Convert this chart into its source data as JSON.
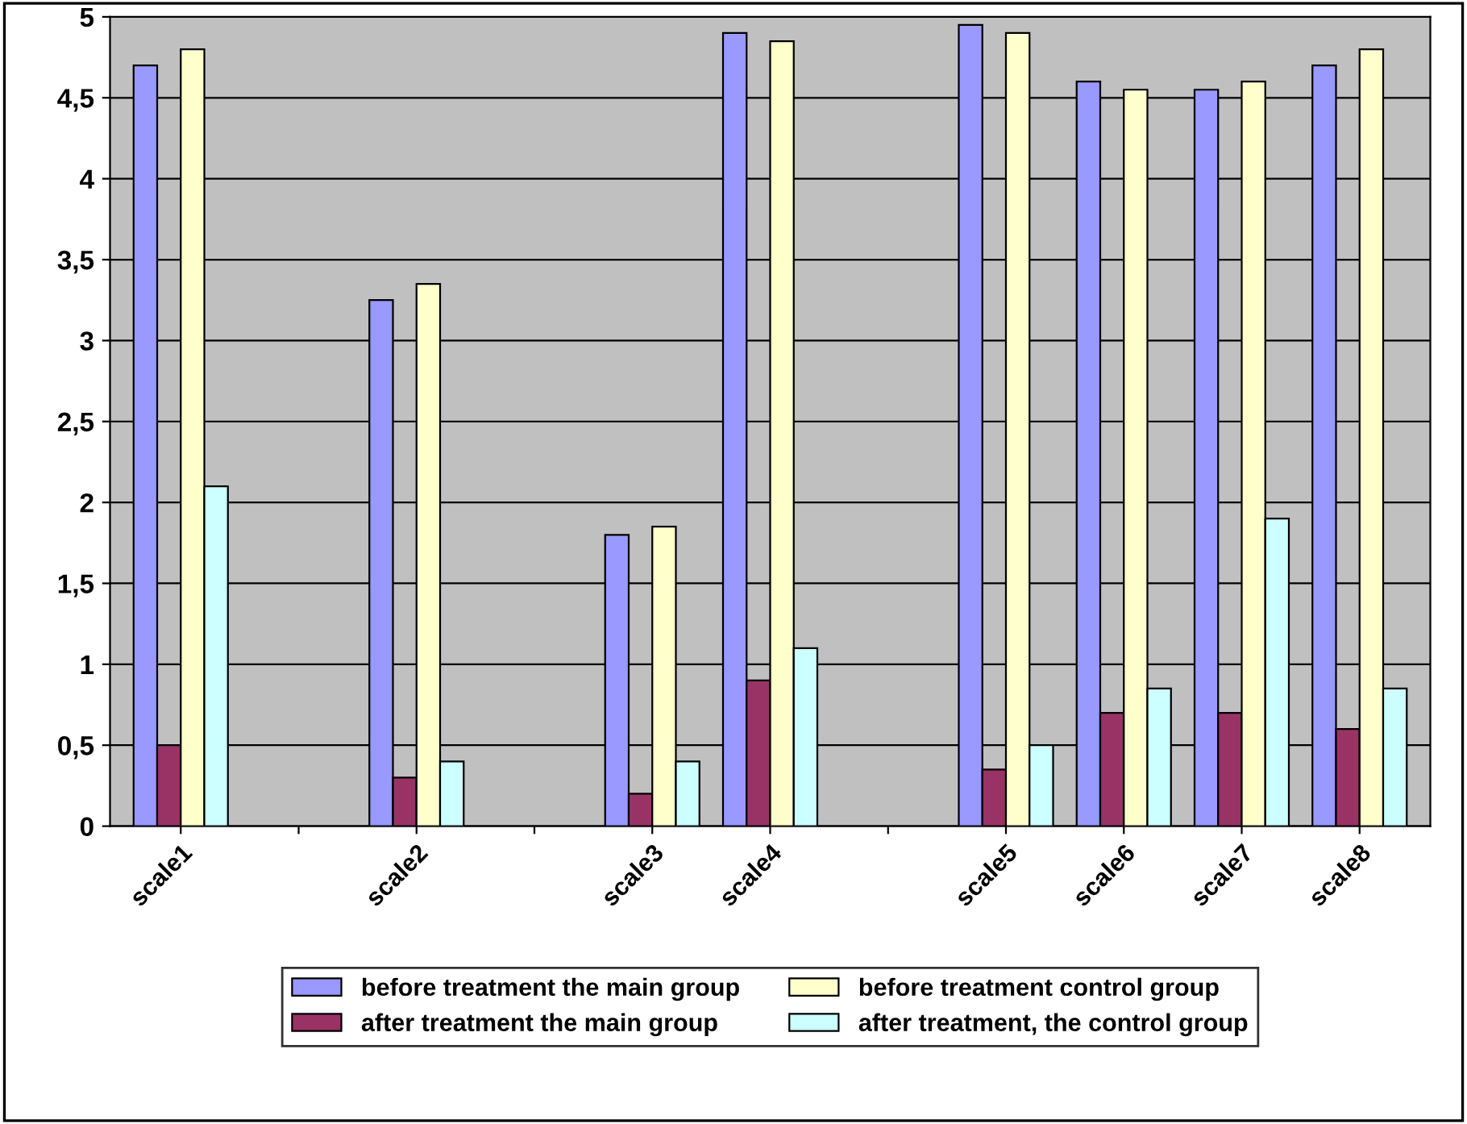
{
  "chart_data": {
    "type": "bar",
    "categories": [
      "scale1",
      null,
      "scale2",
      null,
      "scale3",
      "scale4",
      null,
      "scale5",
      "scale6",
      "scale7",
      "scale8"
    ],
    "series": [
      {
        "name": "before treatment the main group",
        "color": "#9999ff",
        "values": [
          4.7,
          null,
          3.25,
          null,
          1.8,
          4.9,
          null,
          4.95,
          4.6,
          4.55,
          4.7
        ]
      },
      {
        "name": "after treatment the main group",
        "color": "#993366",
        "values": [
          0.5,
          null,
          0.3,
          null,
          0.2,
          0.9,
          null,
          0.35,
          0.7,
          0.7,
          0.6
        ]
      },
      {
        "name": "before treatment control group",
        "color": "#ffffcc",
        "values": [
          4.8,
          null,
          3.35,
          null,
          1.85,
          4.85,
          null,
          4.9,
          4.55,
          4.6,
          4.8
        ]
      },
      {
        "name": "after treatment, the control group",
        "color": "#ccffff",
        "values": [
          2.1,
          null,
          0.4,
          null,
          0.4,
          1.1,
          null,
          0.5,
          0.85,
          1.9,
          0.85
        ]
      }
    ],
    "ylim": [
      0,
      5
    ],
    "yticks": [
      0,
      {
        "value": 0.5,
        "label": "0,5"
      },
      1,
      {
        "value": 1.5,
        "label": "1,5"
      },
      2,
      {
        "value": 2.5,
        "label": "2,5"
      },
      3,
      {
        "value": 3.5,
        "label": "3,5"
      },
      4,
      {
        "value": 4.5,
        "label": "4,5"
      },
      5
    ],
    "grid": "y",
    "legend": "bottom"
  }
}
